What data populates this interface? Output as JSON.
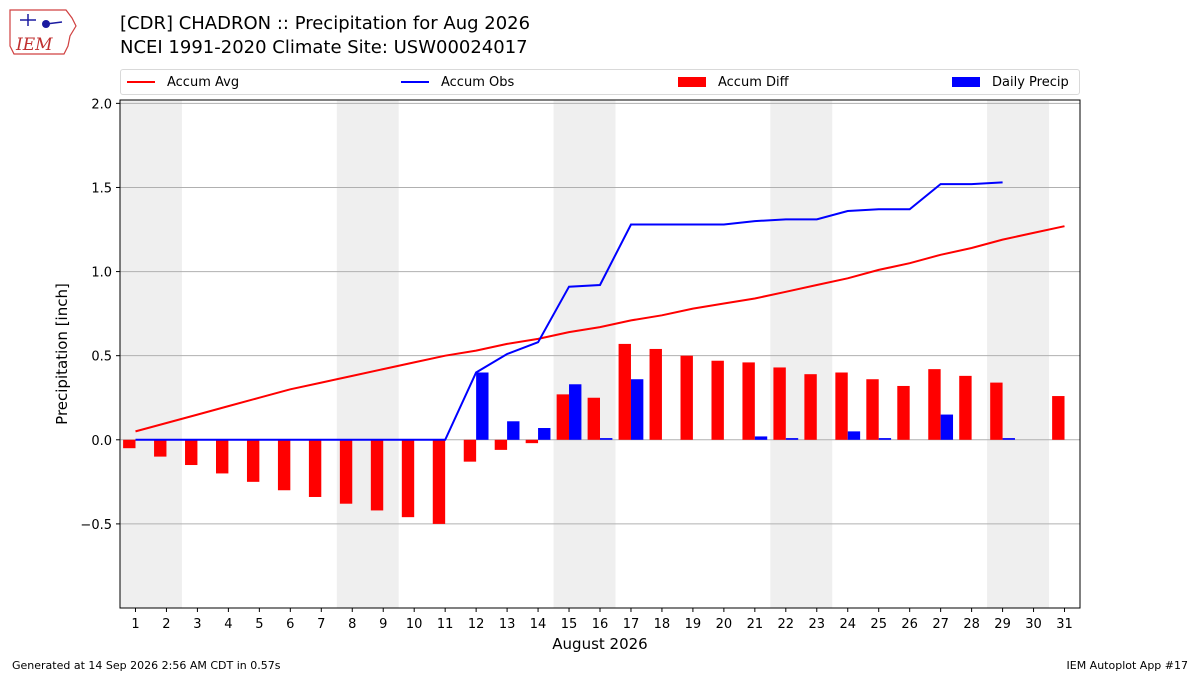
{
  "header": {
    "logo_text": "IEM",
    "title_line1": "[CDR] CHADRON :: Precipitation for Aug 2026",
    "title_line2": "NCEI 1991-2020 Climate Site: USW00024017"
  },
  "legend": {
    "items": [
      {
        "label": "Accum Avg",
        "kind": "line",
        "color": "#ff0000"
      },
      {
        "label": "Accum Obs",
        "kind": "line",
        "color": "#0000ff"
      },
      {
        "label": "Accum Diff",
        "kind": "patch",
        "color": "#ff0000"
      },
      {
        "label": "Daily Precip",
        "kind": "patch",
        "color": "#0000ff"
      }
    ]
  },
  "footer": {
    "left": "Generated at 14 Sep 2026 2:56 AM CDT in 0.57s",
    "right": "IEM Autoplot App #17"
  },
  "chart_data": {
    "type": "bar",
    "xlabel": "August 2026",
    "ylabel": "Precipitation [inch]",
    "ylim": [
      -1.0,
      2.02
    ],
    "xlim": [
      0.5,
      31.5
    ],
    "yticks": [
      -0.5,
      0.0,
      0.5,
      1.0,
      1.5,
      2.0
    ],
    "ytick_labels": [
      "−0.5",
      "0.0",
      "0.5",
      "1.0",
      "1.5",
      "2.0"
    ],
    "days": [
      1,
      2,
      3,
      4,
      5,
      6,
      7,
      8,
      9,
      10,
      11,
      12,
      13,
      14,
      15,
      16,
      17,
      18,
      19,
      20,
      21,
      22,
      23,
      24,
      25,
      26,
      27,
      28,
      29,
      30,
      31
    ],
    "weekend_bands": [
      [
        0.5,
        2.5
      ],
      [
        7.5,
        9.5
      ],
      [
        14.5,
        16.5
      ],
      [
        21.5,
        23.5
      ],
      [
        28.5,
        30.5
      ]
    ],
    "grid": "horizontal",
    "legend_position": "top",
    "band_color": "#efefef",
    "series": [
      {
        "name": "Accum Avg",
        "kind": "line",
        "color": "#ff0000",
        "values": [
          0.05,
          0.1,
          0.15,
          0.2,
          0.25,
          0.3,
          0.34,
          0.38,
          0.42,
          0.46,
          0.5,
          0.53,
          0.57,
          0.6,
          0.64,
          0.67,
          0.71,
          0.74,
          0.78,
          0.81,
          0.84,
          0.88,
          0.92,
          0.96,
          1.01,
          1.05,
          1.1,
          1.14,
          1.19,
          1.23,
          1.27
        ]
      },
      {
        "name": "Accum Obs",
        "kind": "line",
        "color": "#0000ff",
        "values": [
          0.0,
          0.0,
          0.0,
          0.0,
          0.0,
          0.0,
          0.0,
          0.0,
          0.0,
          0.0,
          0.0,
          0.4,
          0.51,
          0.58,
          0.91,
          0.92,
          1.28,
          1.28,
          1.28,
          1.28,
          1.3,
          1.31,
          1.31,
          1.36,
          1.37,
          1.37,
          1.52,
          1.52,
          1.53,
          null,
          null
        ]
      },
      {
        "name": "Accum Diff",
        "kind": "bar",
        "color": "#ff0000",
        "values": [
          -0.05,
          -0.1,
          -0.15,
          -0.2,
          -0.25,
          -0.3,
          -0.34,
          -0.38,
          -0.42,
          -0.46,
          -0.5,
          -0.13,
          -0.06,
          -0.02,
          0.27,
          0.25,
          0.57,
          0.54,
          0.5,
          0.47,
          0.46,
          0.43,
          0.39,
          0.4,
          0.36,
          0.32,
          0.42,
          0.38,
          0.34,
          null,
          0.26
        ]
      },
      {
        "name": "Daily Precip",
        "kind": "bar",
        "color": "#0000ff",
        "values": [
          0.0,
          0.0,
          0.0,
          0.0,
          0.0,
          0.0,
          0.0,
          0.0,
          0.0,
          0.0,
          0.0,
          0.4,
          0.11,
          0.07,
          0.33,
          0.01,
          0.36,
          0.0,
          0.0,
          0.0,
          0.02,
          0.01,
          0.0,
          0.05,
          0.01,
          0.0,
          0.15,
          0.0,
          0.01,
          null,
          null
        ]
      }
    ]
  }
}
